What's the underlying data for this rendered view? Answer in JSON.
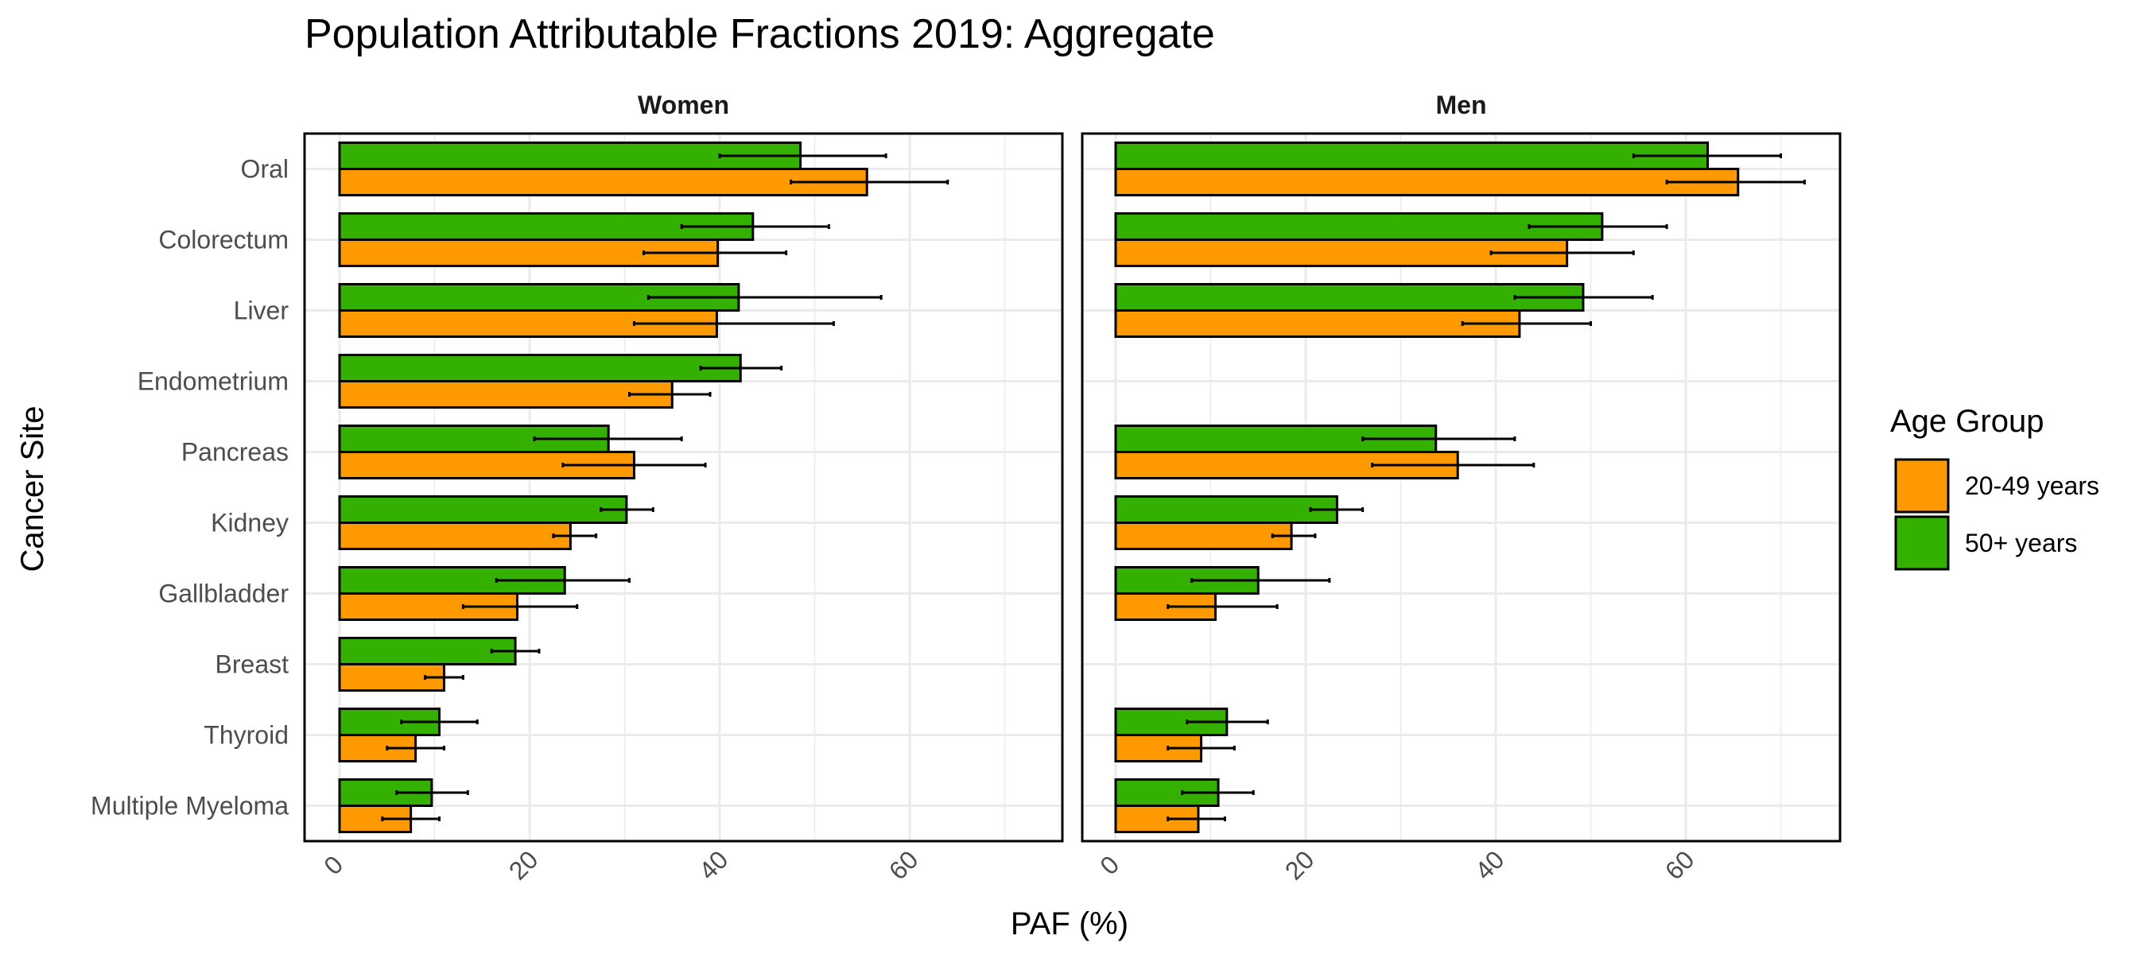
{
  "chart_data": {
    "type": "bar",
    "orientation": "horizontal",
    "title": "Population Attributable Fractions 2019: Aggregate",
    "xlabel": "PAF (%)",
    "ylabel": "Cancer Site",
    "xlim": [
      0,
      75
    ],
    "xticks": [
      "0",
      "20",
      "40",
      "60"
    ],
    "grid": true,
    "legend": {
      "title": "Age Group",
      "placement": "right",
      "entries": [
        {
          "label": "20-49 years",
          "color": "#FF9900"
        },
        {
          "label": "50+ years",
          "color": "#33B000"
        }
      ]
    },
    "categories": [
      "Oral",
      "Colorectum",
      "Liver",
      "Endometrium",
      "Pancreas",
      "Kidney",
      "Gallbladder",
      "Breast",
      "Thyroid",
      "Multiple Myeloma"
    ],
    "panels": [
      {
        "name": "Women",
        "series": [
          {
            "name": "20-49 years",
            "values": [
              55.5,
              39.8,
              39.7,
              35.0,
              31.0,
              24.3,
              18.7,
              11.0,
              8.0,
              7.5
            ],
            "ci_low": [
              47.5,
              32.0,
              31.0,
              30.5,
              23.5,
              22.5,
              13.0,
              9.0,
              5.0,
              4.5
            ],
            "ci_high": [
              64.0,
              47.0,
              52.0,
              39.0,
              38.5,
              27.0,
              25.0,
              13.0,
              11.0,
              10.5
            ]
          },
          {
            "name": "50+ years",
            "values": [
              48.5,
              43.5,
              42.0,
              42.2,
              28.3,
              30.2,
              23.7,
              18.5,
              10.5,
              9.7
            ],
            "ci_low": [
              40.0,
              36.0,
              32.5,
              38.0,
              20.5,
              27.5,
              16.5,
              16.0,
              6.5,
              6.0
            ],
            "ci_high": [
              57.5,
              51.5,
              57.0,
              46.5,
              36.0,
              33.0,
              30.5,
              21.0,
              14.5,
              13.5
            ]
          }
        ]
      },
      {
        "name": "Men",
        "series": [
          {
            "name": "20-49 years",
            "values": [
              65.5,
              47.5,
              42.5,
              null,
              36.0,
              18.5,
              10.5,
              null,
              9.0,
              8.7
            ],
            "ci_low": [
              58.0,
              39.5,
              36.5,
              null,
              27.0,
              16.5,
              5.5,
              null,
              5.5,
              5.5
            ],
            "ci_high": [
              72.5,
              54.5,
              50.0,
              null,
              44.0,
              21.0,
              17.0,
              null,
              12.5,
              11.5
            ]
          },
          {
            "name": "50+ years",
            "values": [
              62.3,
              51.2,
              49.2,
              null,
              33.7,
              23.3,
              15.0,
              null,
              11.7,
              10.8
            ],
            "ci_low": [
              54.5,
              43.5,
              42.0,
              null,
              26.0,
              20.5,
              8.0,
              null,
              7.5,
              7.0
            ],
            "ci_high": [
              70.0,
              58.0,
              56.5,
              null,
              42.0,
              26.0,
              22.5,
              null,
              16.0,
              14.5
            ]
          }
        ]
      }
    ]
  }
}
